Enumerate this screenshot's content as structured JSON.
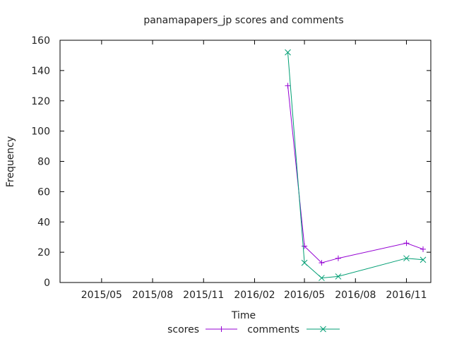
{
  "chart_data": {
    "type": "line",
    "title": "panamapapers_jp scores and comments",
    "xlabel": "Time",
    "ylabel": "Frequency",
    "x_type": "date",
    "xlim": [
      "2015-02-15",
      "2016-12-15"
    ],
    "ylim": [
      0,
      160
    ],
    "x_ticks": [
      {
        "date": "2015-05-01",
        "label": "2015/05"
      },
      {
        "date": "2015-08-01",
        "label": "2015/08"
      },
      {
        "date": "2015-11-01",
        "label": "2015/11"
      },
      {
        "date": "2016-02-01",
        "label": "2016/02"
      },
      {
        "date": "2016-05-01",
        "label": "2016/05"
      },
      {
        "date": "2016-08-01",
        "label": "2016/08"
      },
      {
        "date": "2016-11-01",
        "label": "2016/11"
      }
    ],
    "y_ticks": [
      0,
      20,
      40,
      60,
      80,
      100,
      120,
      140,
      160
    ],
    "grid": false,
    "legend_position": "bottom-center",
    "series": [
      {
        "name": "scores",
        "color": "#9400d3",
        "marker": "plus",
        "points": [
          {
            "x": "2016-04-01",
            "y": 130
          },
          {
            "x": "2016-05-01",
            "y": 24
          },
          {
            "x": "2016-06-01",
            "y": 13
          },
          {
            "x": "2016-07-01",
            "y": 16
          },
          {
            "x": "2016-11-01",
            "y": 26
          },
          {
            "x": "2016-12-01",
            "y": 22
          }
        ]
      },
      {
        "name": "comments",
        "color": "#009e73",
        "marker": "cross",
        "points": [
          {
            "x": "2016-04-01",
            "y": 152
          },
          {
            "x": "2016-05-01",
            "y": 13
          },
          {
            "x": "2016-06-01",
            "y": 3
          },
          {
            "x": "2016-07-01",
            "y": 4
          },
          {
            "x": "2016-11-01",
            "y": 16
          },
          {
            "x": "2016-12-01",
            "y": 15
          }
        ]
      }
    ]
  }
}
